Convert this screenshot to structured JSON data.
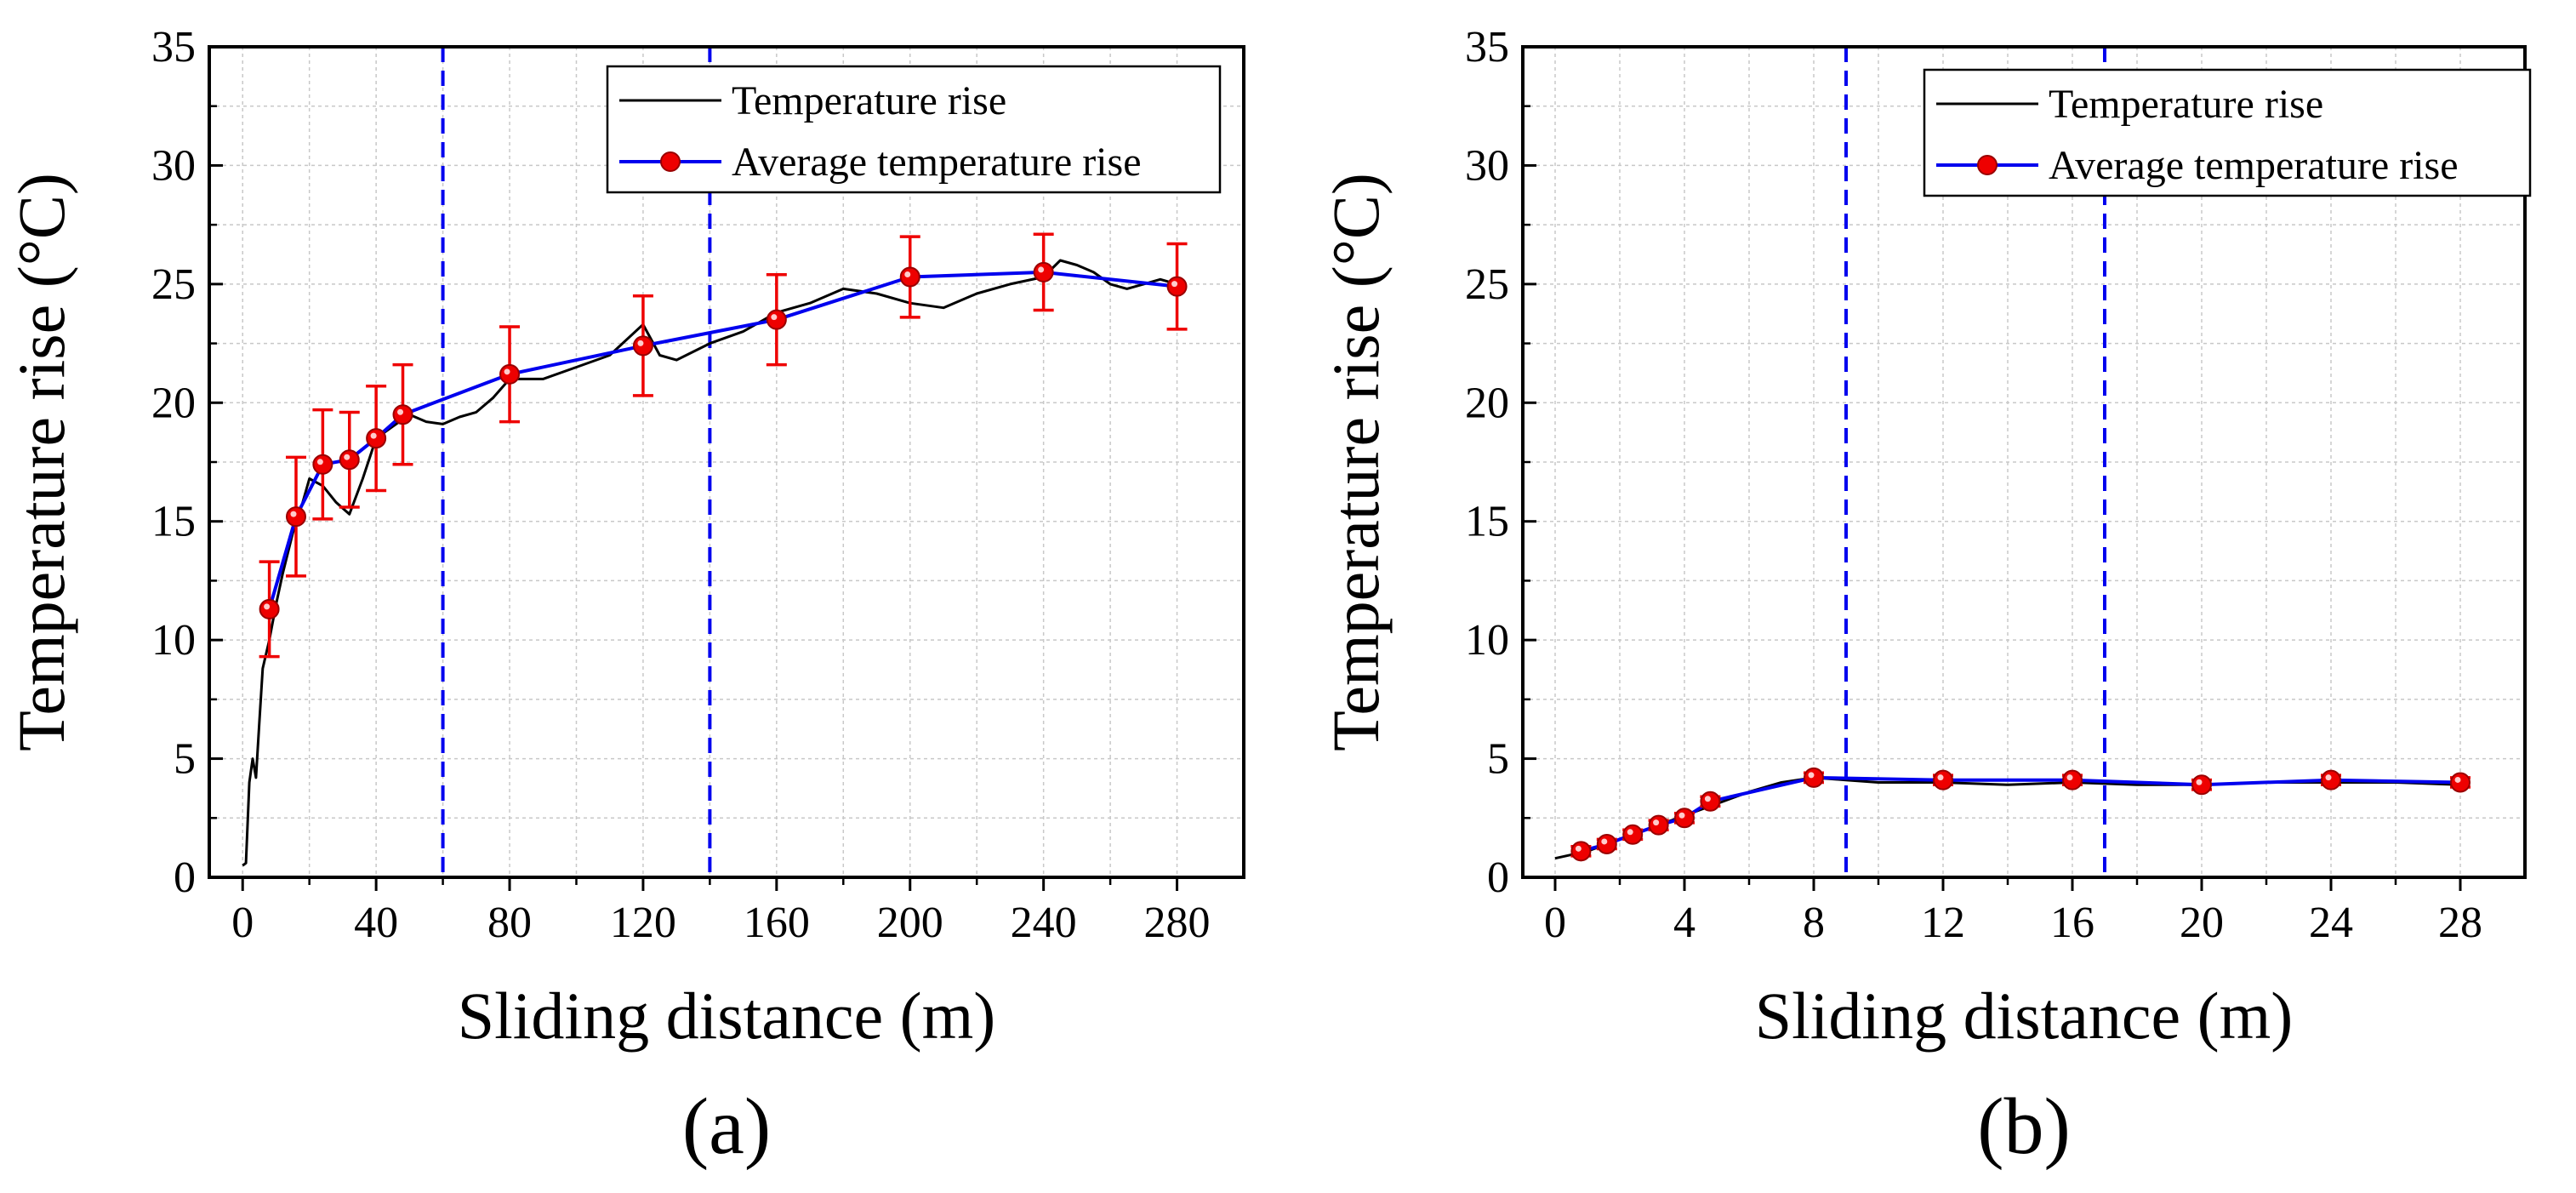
{
  "chart_data": [
    {
      "type": "line",
      "panel_label": "(a)",
      "xlabel": "Sliding distance (m)",
      "ylabel": "Temperature rise (°C)",
      "xlim": [
        -10,
        300
      ],
      "ylim": [
        0,
        35
      ],
      "xticks": [
        "0",
        "40",
        "80",
        "120",
        "160",
        "200",
        "240",
        "280"
      ],
      "yticks": [
        "0",
        "5",
        "10",
        "15",
        "20",
        "25",
        "30",
        "35"
      ],
      "grid": true,
      "legend": "top-right",
      "vlines": [
        60,
        140
      ],
      "series": [
        {
          "name": "Temperature rise",
          "style": "black-line",
          "color": "#000000",
          "x": [
            0,
            1,
            2,
            3,
            4,
            5,
            6,
            8,
            10,
            12,
            15,
            18,
            20,
            24,
            28,
            32,
            36,
            40,
            45,
            50,
            55,
            60,
            65,
            70,
            75,
            80,
            90,
            100,
            110,
            120,
            125,
            130,
            140,
            150,
            160,
            170,
            180,
            190,
            200,
            210,
            220,
            230,
            240,
            245,
            250,
            255,
            260,
            265,
            270,
            275,
            280
          ],
          "y": [
            0.5,
            0.6,
            4.0,
            5.0,
            4.2,
            6.5,
            8.8,
            10.0,
            11.5,
            12.8,
            14.5,
            15.8,
            16.8,
            16.5,
            15.8,
            15.3,
            16.8,
            18.5,
            19.0,
            19.5,
            19.2,
            19.1,
            19.4,
            19.6,
            20.2,
            21.0,
            21.0,
            21.5,
            22.0,
            23.3,
            22.0,
            21.8,
            22.5,
            23.0,
            23.8,
            24.2,
            24.8,
            24.6,
            24.2,
            24.0,
            24.6,
            25.0,
            25.3,
            26.0,
            25.8,
            25.5,
            25.0,
            24.8,
            25.0,
            25.2,
            25.0
          ]
        },
        {
          "name": "Average temperature rise",
          "style": "blue-line-red-markers",
          "color": "#0000ee",
          "marker_color": "#ee0000",
          "x": [
            8,
            16,
            24,
            32,
            40,
            48,
            80,
            120,
            160,
            200,
            240,
            280
          ],
          "y": [
            11.3,
            15.2,
            17.4,
            17.6,
            18.5,
            19.5,
            21.2,
            22.4,
            23.5,
            25.3,
            25.5,
            24.9
          ],
          "error": [
            2.0,
            2.5,
            2.3,
            2.0,
            2.2,
            2.1,
            2.0,
            2.1,
            1.9,
            1.7,
            1.6,
            1.8
          ]
        }
      ]
    },
    {
      "type": "line",
      "panel_label": "(b)",
      "xlabel": "Sliding distance (m)",
      "ylabel": "Temperature rise (°C)",
      "xlim": [
        -1,
        30
      ],
      "ylim": [
        0,
        35
      ],
      "xticks": [
        "0",
        "4",
        "8",
        "12",
        "16",
        "20",
        "24",
        "28"
      ],
      "yticks": [
        "0",
        "5",
        "10",
        "15",
        "20",
        "25",
        "30",
        "35"
      ],
      "grid": true,
      "legend": "top-right",
      "vlines": [
        9,
        17
      ],
      "series": [
        {
          "name": "Temperature rise",
          "style": "black-line",
          "color": "#000000",
          "x": [
            0,
            1,
            2,
            3,
            4,
            5,
            6,
            7,
            8,
            9,
            10,
            12,
            14,
            16,
            18,
            20,
            22,
            24,
            26,
            28
          ],
          "y": [
            0.8,
            1.1,
            1.6,
            2.1,
            2.6,
            3.1,
            3.6,
            4.0,
            4.2,
            4.1,
            4.0,
            4.0,
            3.9,
            4.0,
            3.9,
            3.9,
            4.0,
            4.0,
            4.0,
            3.9
          ]
        },
        {
          "name": "Average temperature rise",
          "style": "blue-line-red-markers",
          "color": "#0000ee",
          "marker_color": "#ee0000",
          "x": [
            0.8,
            1.6,
            2.4,
            3.2,
            4.0,
            4.8,
            8,
            12,
            16,
            20,
            24,
            28
          ],
          "y": [
            1.1,
            1.4,
            1.8,
            2.2,
            2.5,
            3.2,
            4.2,
            4.1,
            4.1,
            3.9,
            4.1,
            4.0
          ],
          "error": [
            0.2,
            0.2,
            0.2,
            0.2,
            0.2,
            0.2,
            0.2,
            0.2,
            0.2,
            0.2,
            0.2,
            0.2
          ]
        }
      ]
    }
  ]
}
